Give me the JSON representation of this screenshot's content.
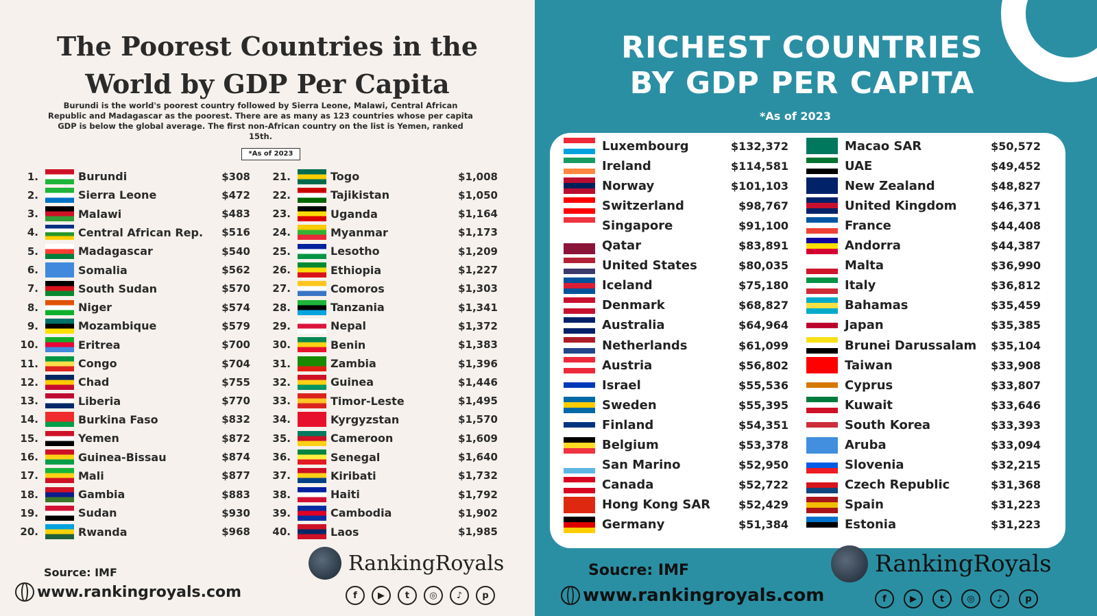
{
  "colors": {
    "left_bg": "#f6f1ec",
    "right_bg": "#2b8fa3",
    "text_dark": "#2a2a2a"
  },
  "left": {
    "title": "The Poorest Countries in the World by GDP Per Capita",
    "description": "Burundi is the world's poorest country followed by Sierra Leone, Malawi, Central African Republic and Madagascar as the poorest. There are as many as 123 countries whose per capita GDP is below the global average. The first non-African country on the list is Yemen, ranked 15th.",
    "as_of": "*As of 2023",
    "countries": [
      {
        "rank": "1.",
        "name": "Burundi",
        "value": "$308",
        "flag": [
          "#ce1126",
          "#fff",
          "#1eb53a"
        ]
      },
      {
        "rank": "2.",
        "name": "Sierra Leone",
        "value": "$472",
        "flag": [
          "#1eb53a",
          "#fff",
          "#0072c6"
        ]
      },
      {
        "rank": "3.",
        "name": "Malawi",
        "value": "$483",
        "flag": [
          "#000",
          "#ce1126",
          "#339e35"
        ]
      },
      {
        "rank": "4.",
        "name": "Central African Rep.",
        "value": "$516",
        "flag": [
          "#003082",
          "#fff",
          "#289728",
          "#ffce00"
        ]
      },
      {
        "rank": "5.",
        "name": "Madagascar",
        "value": "$540",
        "flag": [
          "#fff",
          "#fc3d32",
          "#007e3a"
        ]
      },
      {
        "rank": "6.",
        "name": "Somalia",
        "value": "$562",
        "flag": [
          "#4189dd",
          "#4189dd",
          "#4189dd"
        ]
      },
      {
        "rank": "7.",
        "name": "South Sudan",
        "value": "$570",
        "flag": [
          "#000",
          "#da121a",
          "#078930"
        ]
      },
      {
        "rank": "8.",
        "name": "Niger",
        "value": "$574",
        "flag": [
          "#e05206",
          "#fff",
          "#0db02b"
        ]
      },
      {
        "rank": "9.",
        "name": "Mozambique",
        "value": "$579",
        "flag": [
          "#007168",
          "#000",
          "#fce100"
        ]
      },
      {
        "rank": "10.",
        "name": "Eritrea",
        "value": "$700",
        "flag": [
          "#12ad2b",
          "#ea0437",
          "#4189dd"
        ]
      },
      {
        "rank": "11.",
        "name": "Congo",
        "value": "$704",
        "flag": [
          "#009543",
          "#fbde4a",
          "#dc241f"
        ]
      },
      {
        "rank": "12.",
        "name": "Chad",
        "value": "$755",
        "flag": [
          "#002664",
          "#fecb00",
          "#c60c30"
        ]
      },
      {
        "rank": "13.",
        "name": "Liberia",
        "value": "$770",
        "flag": [
          "#bf0a30",
          "#fff",
          "#002868"
        ]
      },
      {
        "rank": "14.",
        "name": "Burkina Faso",
        "value": "$832",
        "flag": [
          "#ef2b2d",
          "#ef2b2d",
          "#009e49"
        ]
      },
      {
        "rank": "15.",
        "name": "Yemen",
        "value": "$872",
        "flag": [
          "#ce1126",
          "#fff",
          "#000"
        ]
      },
      {
        "rank": "16.",
        "name": "Guinea-Bissau",
        "value": "$874",
        "flag": [
          "#ce1126",
          "#fcd116",
          "#009e49"
        ]
      },
      {
        "rank": "17.",
        "name": "Mali",
        "value": "$877",
        "flag": [
          "#14b53a",
          "#fcd116",
          "#ce1126"
        ]
      },
      {
        "rank": "18.",
        "name": "Gambia",
        "value": "$883",
        "flag": [
          "#ce1126",
          "#0c1c8c",
          "#3a7728"
        ]
      },
      {
        "rank": "19.",
        "name": "Sudan",
        "value": "$930",
        "flag": [
          "#d21034",
          "#fff",
          "#000"
        ]
      },
      {
        "rank": "20.",
        "name": "Rwanda",
        "value": "$968",
        "flag": [
          "#00a1de",
          "#fad201",
          "#20603d"
        ]
      },
      {
        "rank": "21.",
        "name": "Togo",
        "value": "$1,008",
        "flag": [
          "#006a4e",
          "#ffce00",
          "#006a4e"
        ]
      },
      {
        "rank": "22.",
        "name": "Tajikistan",
        "value": "$1,050",
        "flag": [
          "#cc0000",
          "#fff",
          "#006600"
        ]
      },
      {
        "rank": "23.",
        "name": "Uganda",
        "value": "$1,164",
        "flag": [
          "#000",
          "#fcdc04",
          "#d90000"
        ]
      },
      {
        "rank": "24.",
        "name": "Myanmar",
        "value": "$1,173",
        "flag": [
          "#fecb00",
          "#34b233",
          "#ea2839"
        ]
      },
      {
        "rank": "25.",
        "name": "Lesotho",
        "value": "$1,209",
        "flag": [
          "#00209f",
          "#fff",
          "#009543"
        ]
      },
      {
        "rank": "26.",
        "name": "Ethiopia",
        "value": "$1,227",
        "flag": [
          "#078930",
          "#fcdd09",
          "#da121a"
        ]
      },
      {
        "rank": "27.",
        "name": "Comoros",
        "value": "$1,303",
        "flag": [
          "#ffc61e",
          "#fff",
          "#3a75c4"
        ]
      },
      {
        "rank": "28.",
        "name": "Tanzania",
        "value": "$1,341",
        "flag": [
          "#1eb53a",
          "#000",
          "#00a3dd"
        ]
      },
      {
        "rank": "29.",
        "name": "Nepal",
        "value": "$1,372",
        "flag": [
          "#fff",
          "#dc143c",
          "#fff"
        ]
      },
      {
        "rank": "30.",
        "name": "Benin",
        "value": "$1,383",
        "flag": [
          "#008751",
          "#fcd116",
          "#e8112d"
        ]
      },
      {
        "rank": "31.",
        "name": "Zambia",
        "value": "$1,396",
        "flag": [
          "#198a00",
          "#198a00",
          "#de2010"
        ]
      },
      {
        "rank": "32.",
        "name": "Guinea",
        "value": "$1,446",
        "flag": [
          "#ce1126",
          "#fcd116",
          "#009460"
        ]
      },
      {
        "rank": "33.",
        "name": "Timor-Leste",
        "value": "$1,495",
        "flag": [
          "#dc241f",
          "#ffc726",
          "#dc241f"
        ]
      },
      {
        "rank": "34.",
        "name": "Kyrgyzstan",
        "value": "$1,570",
        "flag": [
          "#e8112d",
          "#e8112d",
          "#e8112d"
        ]
      },
      {
        "rank": "35.",
        "name": "Cameroon",
        "value": "$1,609",
        "flag": [
          "#007a5e",
          "#ce1126",
          "#fcd116"
        ]
      },
      {
        "rank": "36.",
        "name": "Senegal",
        "value": "$1,640",
        "flag": [
          "#00853f",
          "#fdef42",
          "#e31b23"
        ]
      },
      {
        "rank": "37.",
        "name": "Kiribati",
        "value": "$1,732",
        "flag": [
          "#ce1126",
          "#fcd116",
          "#003f87"
        ]
      },
      {
        "rank": "38.",
        "name": "Haiti",
        "value": "$1,792",
        "flag": [
          "#00209f",
          "#fff",
          "#d21034"
        ]
      },
      {
        "rank": "39.",
        "name": "Cambodia",
        "value": "$1,902",
        "flag": [
          "#032ea1",
          "#e00025",
          "#032ea1"
        ]
      },
      {
        "rank": "40.",
        "name": "Laos",
        "value": "$1,985",
        "flag": [
          "#ce1126",
          "#002868",
          "#ce1126"
        ]
      }
    ],
    "source": "Source: IMF",
    "website": "www.rankingroyals.com",
    "brand": "RankingRoyals"
  },
  "right": {
    "title_line1": "RICHEST COUNTRIES",
    "title_line2": "BY GDP PER CAPITA",
    "as_of": "*As of 2023",
    "countries": [
      {
        "name": "Luxembourg",
        "value": "$132,372",
        "flag": [
          "#ed2939",
          "#fff",
          "#00a1de"
        ]
      },
      {
        "name": "Ireland",
        "value": "$114,581",
        "flag": [
          "#169b62",
          "#fff",
          "#ff883e"
        ]
      },
      {
        "name": "Norway",
        "value": "$101,103",
        "flag": [
          "#ba0c2f",
          "#00205b",
          "#ba0c2f"
        ]
      },
      {
        "name": "Switzerland",
        "value": "$98,767",
        "flag": [
          "#ff0000",
          "#fff",
          "#ff0000"
        ]
      },
      {
        "name": "Singapore",
        "value": "$91,100",
        "flag": [
          "#ef3340",
          "#fff",
          "#fff"
        ]
      },
      {
        "name": "Qatar",
        "value": "$83,891",
        "flag": [
          "#fff",
          "#8a1538",
          "#8a1538"
        ]
      },
      {
        "name": "United States",
        "value": "$80,035",
        "flag": [
          "#b22234",
          "#fff",
          "#3c3b6e"
        ]
      },
      {
        "name": "Iceland",
        "value": "$75,180",
        "flag": [
          "#02529c",
          "#dc1e35",
          "#02529c"
        ]
      },
      {
        "name": "Denmark",
        "value": "$68,827",
        "flag": [
          "#c8102e",
          "#fff",
          "#c8102e"
        ]
      },
      {
        "name": "Australia",
        "value": "$64,964",
        "flag": [
          "#012169",
          "#fff",
          "#012169"
        ]
      },
      {
        "name": "Netherlands",
        "value": "$61,099",
        "flag": [
          "#ae1c28",
          "#fff",
          "#21468b"
        ]
      },
      {
        "name": "Austria",
        "value": "$56,802",
        "flag": [
          "#ed2939",
          "#fff",
          "#ed2939"
        ]
      },
      {
        "name": "Israel",
        "value": "$55,536",
        "flag": [
          "#fff",
          "#0038b8",
          "#fff"
        ]
      },
      {
        "name": "Sweden",
        "value": "$55,395",
        "flag": [
          "#006aa7",
          "#fecc00",
          "#006aa7"
        ]
      },
      {
        "name": "Finland",
        "value": "$54,351",
        "flag": [
          "#fff",
          "#003580",
          "#fff"
        ]
      },
      {
        "name": "Belgium",
        "value": "$53,378",
        "flag": [
          "#000",
          "#fdda24",
          "#ef3340"
        ]
      },
      {
        "name": "San Marino",
        "value": "$52,950",
        "flag": [
          "#fff",
          "#fff",
          "#5eb6e4"
        ]
      },
      {
        "name": "Canada",
        "value": "$52,722",
        "flag": [
          "#d80621",
          "#fff",
          "#d80621"
        ]
      },
      {
        "name": "Hong Kong SAR",
        "value": "$52,429",
        "flag": [
          "#de2910",
          "#de2910",
          "#de2910"
        ]
      },
      {
        "name": "Germany",
        "value": "$51,384",
        "flag": [
          "#000",
          "#dd0000",
          "#ffce00"
        ]
      },
      {
        "name": "Macao SAR",
        "value": "$50,572",
        "flag": [
          "#00785e",
          "#00785e",
          "#00785e"
        ]
      },
      {
        "name": "UAE",
        "value": "$49,452",
        "flag": [
          "#00732f",
          "#fff",
          "#000"
        ]
      },
      {
        "name": "New Zealand",
        "value": "$48,827",
        "flag": [
          "#012169",
          "#012169",
          "#012169"
        ]
      },
      {
        "name": "United Kingdom",
        "value": "$46,371",
        "flag": [
          "#012169",
          "#c8102e",
          "#012169"
        ]
      },
      {
        "name": "France",
        "value": "$44,408",
        "flag": [
          "#0055a4",
          "#fff",
          "#ef4135"
        ]
      },
      {
        "name": "Andorra",
        "value": "$44,387",
        "flag": [
          "#10069f",
          "#fedf00",
          "#d50032"
        ]
      },
      {
        "name": "Malta",
        "value": "$36,990",
        "flag": [
          "#fff",
          "#fff",
          "#cf142b"
        ]
      },
      {
        "name": "Italy",
        "value": "$36,812",
        "flag": [
          "#009246",
          "#fff",
          "#ce2b37"
        ]
      },
      {
        "name": "Bahamas",
        "value": "$35,459",
        "flag": [
          "#00abc9",
          "#fae042",
          "#00abc9"
        ]
      },
      {
        "name": "Japan",
        "value": "$35,385",
        "flag": [
          "#fff",
          "#bc002d",
          "#fff"
        ]
      },
      {
        "name": "Brunei Darussalam",
        "value": "$35,104",
        "flag": [
          "#f7e017",
          "#fff",
          "#000"
        ]
      },
      {
        "name": "Taiwan",
        "value": "$33,908",
        "flag": [
          "#fe0000",
          "#fe0000",
          "#fe0000"
        ]
      },
      {
        "name": "Cyprus",
        "value": "$33,807",
        "flag": [
          "#fff",
          "#d57800",
          "#fff"
        ]
      },
      {
        "name": "Kuwait",
        "value": "$33,646",
        "flag": [
          "#007a3d",
          "#fff",
          "#ce1126"
        ]
      },
      {
        "name": "South Korea",
        "value": "$33,393",
        "flag": [
          "#fff",
          "#cd2e3a",
          "#fff"
        ]
      },
      {
        "name": "Aruba",
        "value": "$33,094",
        "flag": [
          "#418fde",
          "#418fde",
          "#418fde"
        ]
      },
      {
        "name": "Slovenia",
        "value": "$32,215",
        "flag": [
          "#fff",
          "#005ce5",
          "#ed1c24"
        ]
      },
      {
        "name": "Czech Republic",
        "value": "$31,368",
        "flag": [
          "#fff",
          "#d7141a",
          "#11457e"
        ]
      },
      {
        "name": "Spain",
        "value": "$31,223",
        "flag": [
          "#aa151b",
          "#f1bf00",
          "#aa151b"
        ]
      },
      {
        "name": "Estonia",
        "value": "$31,223",
        "flag": [
          "#0072ce",
          "#000",
          "#fff"
        ]
      }
    ],
    "source": "Soucre: IMF",
    "website": "www.rankingroyals.com",
    "brand": "RankingRoyals"
  },
  "social_icons": [
    "facebook-icon",
    "youtube-icon",
    "twitter-icon",
    "instagram-icon",
    "tiktok-icon",
    "pinterest-icon"
  ]
}
